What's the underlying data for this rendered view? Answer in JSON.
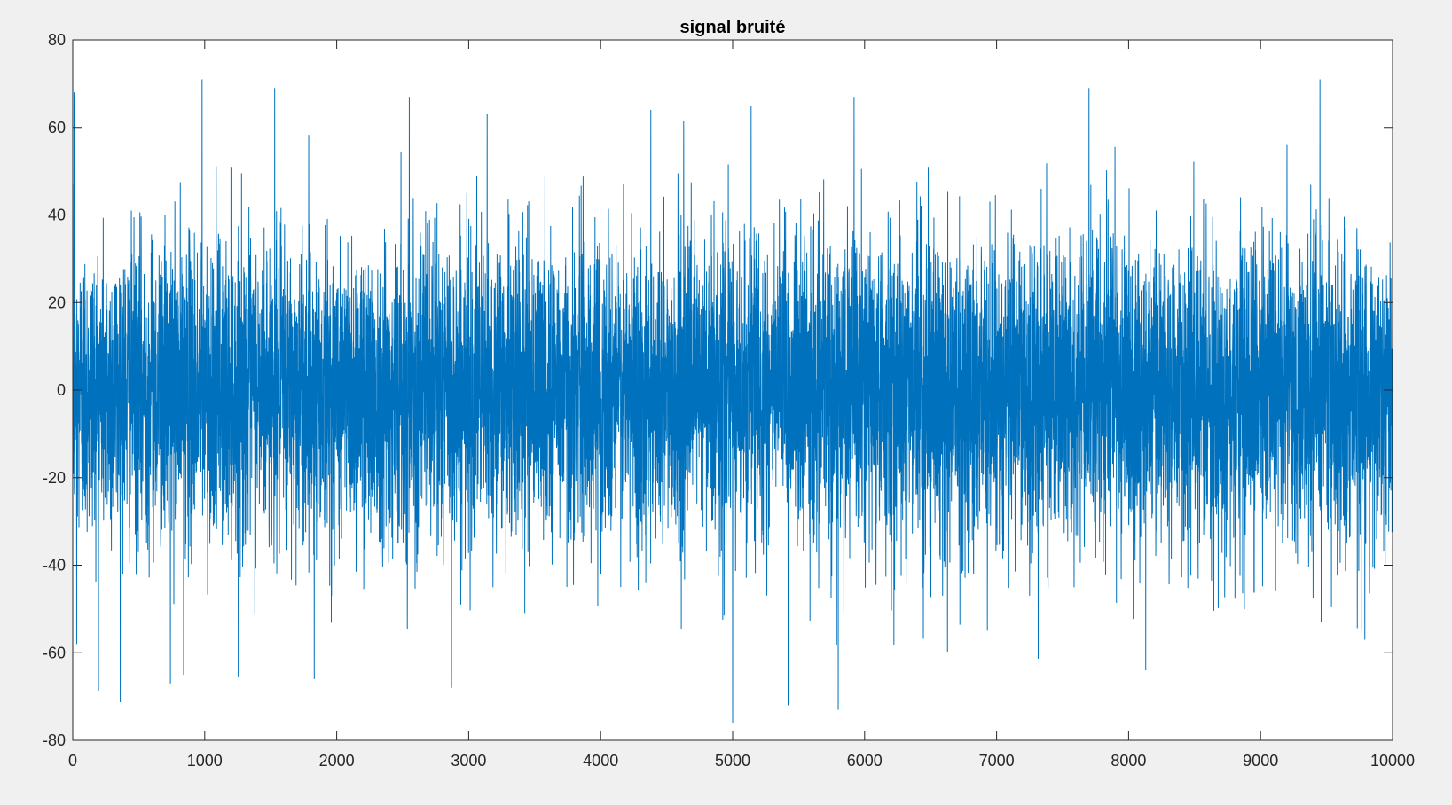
{
  "chart_data": {
    "type": "line",
    "title": "signal bruité",
    "xlabel": "",
    "ylabel": "",
    "xlim": [
      0,
      10000
    ],
    "ylim": [
      -80,
      80
    ],
    "x_ticks": [
      0,
      1000,
      2000,
      3000,
      4000,
      5000,
      6000,
      7000,
      8000,
      9000,
      10000
    ],
    "y_ticks": [
      -80,
      -60,
      -40,
      -20,
      0,
      20,
      40,
      60,
      80
    ],
    "x_tick_labels": [
      "0",
      "1000",
      "2000",
      "3000",
      "4000",
      "5000",
      "6000",
      "7000",
      "8000",
      "9000",
      "10000"
    ],
    "y_tick_labels": [
      "-80",
      "-60",
      "-40",
      "-20",
      "0",
      "20",
      "40",
      "60",
      "80"
    ],
    "grid": false,
    "colors": {
      "figure_background": "#f0f0f0",
      "axes_background": "#ffffff",
      "line": "#0072bd",
      "axes": "#262626"
    },
    "series": [
      {
        "n_points": 10000,
        "x_start": 1,
        "x_end": 10000,
        "mean": 0,
        "std": 17,
        "peaks": [
          {
            "x": 10,
            "y": 68
          },
          {
            "x": 30,
            "y": -58
          },
          {
            "x": 980,
            "y": 71
          },
          {
            "x": 1530,
            "y": 69
          },
          {
            "x": 2550,
            "y": 67
          },
          {
            "x": 3140,
            "y": 63
          },
          {
            "x": 4380,
            "y": 64
          },
          {
            "x": 5140,
            "y": 65
          },
          {
            "x": 5920,
            "y": 67
          },
          {
            "x": 7700,
            "y": 69
          },
          {
            "x": 9450,
            "y": 71
          },
          {
            "x": 740,
            "y": -67
          },
          {
            "x": 840,
            "y": -65
          },
          {
            "x": 1830,
            "y": -66
          },
          {
            "x": 2870,
            "y": -68
          },
          {
            "x": 5000,
            "y": -76
          },
          {
            "x": 5420,
            "y": -72
          },
          {
            "x": 5800,
            "y": -73
          },
          {
            "x": 8130,
            "y": -64
          },
          {
            "x": 9790,
            "y": -57
          }
        ]
      }
    ]
  }
}
